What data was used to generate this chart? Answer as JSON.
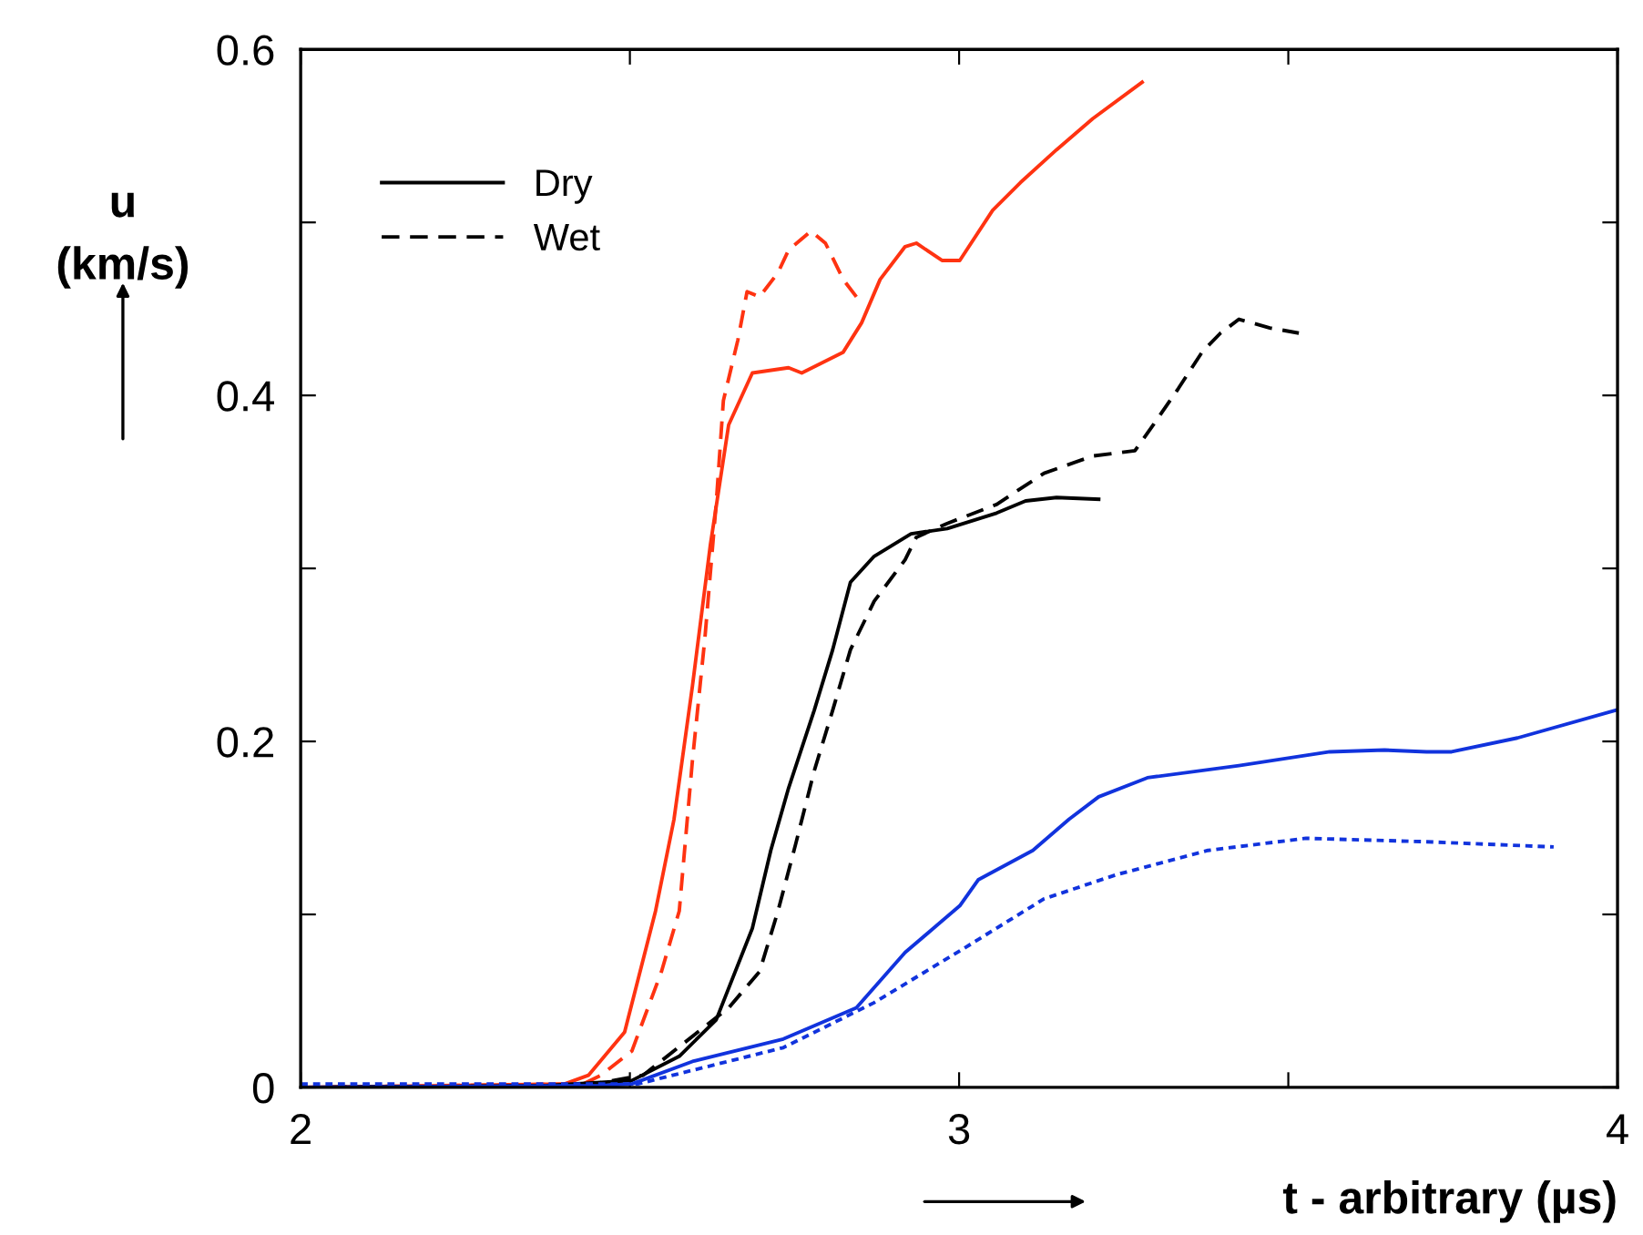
{
  "chart_data": {
    "type": "line",
    "xlabel": "t - arbitrary (µs)",
    "ylabel": "u\n(km/s)",
    "xlim": [
      2,
      4
    ],
    "xticks": [
      2,
      {
        "value": 2.5,
        "label": null
      },
      3,
      {
        "value": 3.5,
        "label": null
      },
      4
    ],
    "ylim": [
      0,
      0.6
    ],
    "yticks": [
      0,
      {
        "value": 0.1,
        "label": null
      },
      0.2,
      {
        "value": 0.3,
        "label": null
      },
      0.4,
      {
        "value": 0.5,
        "label": null
      },
      0.6
    ],
    "grid": false,
    "legend": "top left",
    "marker": "none",
    "series": [
      {
        "color": "#ff3311",
        "line_style": "solid",
        "x": [
          2.0,
          2.401,
          2.437,
          2.492,
          2.539,
          2.567,
          2.595,
          2.622,
          2.65,
          2.686,
          2.741,
          2.761,
          2.824,
          2.852,
          2.88,
          2.918,
          2.935,
          2.974,
          3.001,
          3.051,
          3.093,
          3.148,
          3.203,
          3.278
        ],
        "values": [
          0,
          0.002,
          0.007,
          0.032,
          0.102,
          0.155,
          0.232,
          0.313,
          0.383,
          0.413,
          0.416,
          0.413,
          0.425,
          0.442,
          0.467,
          0.486,
          0.488,
          0.478,
          0.478,
          0.507,
          0.523,
          0.542,
          0.56,
          0.581
        ]
      },
      {
        "color": "#ff3311",
        "line_style": "dashed",
        "x": [
          2.0,
          2.429,
          2.456,
          2.503,
          2.548,
          2.575,
          2.595,
          2.614,
          2.631,
          2.642,
          2.664,
          2.678,
          2.697,
          2.725,
          2.741,
          2.775,
          2.797,
          2.824,
          2.844
        ],
        "values": [
          0,
          0.002,
          0.007,
          0.021,
          0.067,
          0.102,
          0.189,
          0.26,
          0.337,
          0.397,
          0.432,
          0.46,
          0.457,
          0.471,
          0.484,
          0.495,
          0.488,
          0.467,
          0.457
        ]
      },
      {
        "name": "Dry",
        "color": "#000000",
        "line_style": "solid",
        "x": [
          2.0,
          2.373,
          2.503,
          2.575,
          2.631,
          2.686,
          2.714,
          2.741,
          2.78,
          2.808,
          2.835,
          2.871,
          2.927,
          2.982,
          3.057,
          3.101,
          3.148,
          3.212
        ],
        "values": [
          0,
          0.001,
          0.004,
          0.018,
          0.039,
          0.092,
          0.137,
          0.173,
          0.218,
          0.253,
          0.292,
          0.307,
          0.32,
          0.323,
          0.332,
          0.339,
          0.341,
          0.34
        ]
      },
      {
        "name": "Wet",
        "color": "#000000",
        "line_style": "dashed",
        "x": [
          2.0,
          2.429,
          2.52,
          2.65,
          2.697,
          2.725,
          2.752,
          2.78,
          2.808,
          2.835,
          2.871,
          2.918,
          2.935,
          2.982,
          3.057,
          3.129,
          3.203,
          3.267,
          3.295,
          3.333,
          3.369,
          3.397,
          3.425,
          3.472,
          3.516
        ],
        "values": [
          0,
          0.001,
          0.007,
          0.046,
          0.067,
          0.102,
          0.141,
          0.183,
          0.218,
          0.253,
          0.281,
          0.305,
          0.318,
          0.326,
          0.337,
          0.355,
          0.365,
          0.368,
          0.383,
          0.404,
          0.425,
          0.436,
          0.444,
          0.439,
          0.436
        ]
      },
      {
        "color": "#1133dd",
        "line_style": "solid",
        "x": [
          2.0,
          2.456,
          2.503,
          2.595,
          2.733,
          2.844,
          2.918,
          3.001,
          3.029,
          3.112,
          3.167,
          3.212,
          3.286,
          3.425,
          3.563,
          3.646,
          3.71,
          3.748,
          3.848,
          3.997
        ],
        "values": [
          0,
          0.001,
          0.002,
          0.015,
          0.028,
          0.046,
          0.078,
          0.105,
          0.12,
          0.137,
          0.155,
          0.168,
          0.179,
          0.186,
          0.194,
          0.195,
          0.194,
          0.194,
          0.202,
          0.218
        ]
      },
      {
        "color": "#1133dd",
        "line_style": "dotted",
        "x": [
          2.0,
          2.512,
          2.733,
          2.871,
          3.01,
          3.129,
          3.239,
          3.378,
          3.527,
          3.71,
          3.903
        ],
        "values": [
          0.002,
          0.002,
          0.023,
          0.049,
          0.081,
          0.109,
          0.123,
          0.137,
          0.144,
          0.142,
          0.139
        ]
      }
    ]
  }
}
